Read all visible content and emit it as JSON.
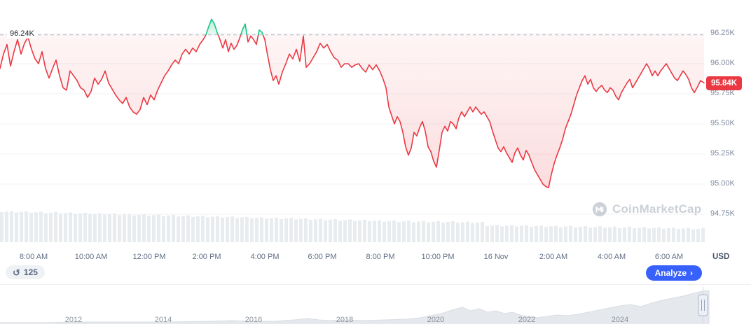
{
  "chart_data": {
    "type": "line",
    "title": "",
    "currency": "USD",
    "open_price": 96.24,
    "open_price_label": "96.24K",
    "current_price": 95.84,
    "current_price_label": "95.84K",
    "ylim": [
      94.625,
      96.4
    ],
    "grid": true,
    "legend": false,
    "y_ticks": [
      "96.25K",
      "96.00K",
      "95.75K",
      "95.50K",
      "95.25K",
      "95.00K",
      "94.75K"
    ],
    "y_tick_values": [
      96.25,
      96.0,
      95.75,
      95.5,
      95.25,
      95.0,
      94.75
    ],
    "x_ticks": [
      "8:00 AM",
      "10:00 AM",
      "12:00 PM",
      "2:00 PM",
      "4:00 PM",
      "6:00 PM",
      "8:00 PM",
      "10:00 PM",
      "16 Nov",
      "2:00 AM",
      "4:00 AM",
      "6:00 AM"
    ],
    "colors": {
      "up": "#16c784",
      "down": "#ea3943",
      "badge": "#ea3943",
      "grid": "#f0f2f5",
      "dash": "#b3bac4",
      "volume": "#e9ecef",
      "axis_text": "#808a9d",
      "nav_area": "#e5e8ec",
      "analyze_button": "#3861fb",
      "watermark": "#ccd1d8"
    },
    "price_points": [
      [
        0,
        95.96
      ],
      [
        5,
        96.08
      ],
      [
        10,
        96.16
      ],
      [
        15,
        95.98
      ],
      [
        20,
        96.1
      ],
      [
        25,
        96.2
      ],
      [
        30,
        96.08
      ],
      [
        35,
        96.17
      ],
      [
        40,
        96.22
      ],
      [
        45,
        96.12
      ],
      [
        50,
        96.04
      ],
      [
        55,
        96.0
      ],
      [
        60,
        96.1
      ],
      [
        65,
        95.96
      ],
      [
        70,
        95.88
      ],
      [
        75,
        95.96
      ],
      [
        80,
        96.03
      ],
      [
        85,
        95.9
      ],
      [
        90,
        95.8
      ],
      [
        95,
        95.78
      ],
      [
        100,
        95.94
      ],
      [
        105,
        95.9
      ],
      [
        110,
        95.86
      ],
      [
        115,
        95.8
      ],
      [
        120,
        95.78
      ],
      [
        125,
        95.72
      ],
      [
        130,
        95.77
      ],
      [
        135,
        95.88
      ],
      [
        140,
        95.83
      ],
      [
        145,
        95.87
      ],
      [
        150,
        95.94
      ],
      [
        155,
        95.84
      ],
      [
        160,
        95.79
      ],
      [
        165,
        95.74
      ],
      [
        170,
        95.7
      ],
      [
        175,
        95.67
      ],
      [
        180,
        95.72
      ],
      [
        185,
        95.64
      ],
      [
        190,
        95.6
      ],
      [
        195,
        95.58
      ],
      [
        200,
        95.62
      ],
      [
        205,
        95.72
      ],
      [
        210,
        95.66
      ],
      [
        215,
        95.74
      ],
      [
        220,
        95.7
      ],
      [
        225,
        95.78
      ],
      [
        230,
        95.84
      ],
      [
        235,
        95.9
      ],
      [
        240,
        95.94
      ],
      [
        245,
        95.99
      ],
      [
        250,
        96.03
      ],
      [
        255,
        96.0
      ],
      [
        260,
        96.08
      ],
      [
        265,
        96.12
      ],
      [
        270,
        96.08
      ],
      [
        275,
        96.13
      ],
      [
        280,
        96.1
      ],
      [
        285,
        96.16
      ],
      [
        290,
        96.2
      ],
      [
        294,
        96.24
      ],
      [
        298,
        96.31
      ],
      [
        302,
        96.37
      ],
      [
        306,
        96.33
      ],
      [
        310,
        96.26
      ],
      [
        314,
        96.2
      ],
      [
        318,
        96.13
      ],
      [
        322,
        96.2
      ],
      [
        326,
        96.1
      ],
      [
        330,
        96.17
      ],
      [
        334,
        96.12
      ],
      [
        338,
        96.15
      ],
      [
        342,
        96.21
      ],
      [
        346,
        96.28
      ],
      [
        350,
        96.33
      ],
      [
        354,
        96.18
      ],
      [
        358,
        96.23
      ],
      [
        362,
        96.2
      ],
      [
        366,
        96.16
      ],
      [
        370,
        96.28
      ],
      [
        374,
        96.26
      ],
      [
        378,
        96.2
      ],
      [
        382,
        96.07
      ],
      [
        386,
        95.95
      ],
      [
        390,
        95.86
      ],
      [
        394,
        95.9
      ],
      [
        398,
        95.83
      ],
      [
        403,
        95.93
      ],
      [
        408,
        96.0
      ],
      [
        413,
        96.08
      ],
      [
        418,
        96.04
      ],
      [
        423,
        96.12
      ],
      [
        428,
        96.02
      ],
      [
        433,
        96.23
      ],
      [
        437,
        95.97
      ],
      [
        442,
        96.0
      ],
      [
        447,
        96.05
      ],
      [
        452,
        96.1
      ],
      [
        457,
        96.17
      ],
      [
        462,
        96.13
      ],
      [
        467,
        96.16
      ],
      [
        472,
        96.1
      ],
      [
        477,
        96.05
      ],
      [
        482,
        96.03
      ],
      [
        487,
        95.97
      ],
      [
        492,
        96.0
      ],
      [
        497,
        96.0
      ],
      [
        502,
        95.97
      ],
      [
        507,
        95.99
      ],
      [
        512,
        96.0
      ],
      [
        517,
        95.96
      ],
      [
        522,
        95.93
      ],
      [
        527,
        95.99
      ],
      [
        532,
        95.95
      ],
      [
        537,
        95.99
      ],
      [
        542,
        95.94
      ],
      [
        547,
        95.87
      ],
      [
        551,
        95.8
      ],
      [
        555,
        95.64
      ],
      [
        559,
        95.57
      ],
      [
        563,
        95.5
      ],
      [
        567,
        95.56
      ],
      [
        571,
        95.52
      ],
      [
        575,
        95.43
      ],
      [
        579,
        95.31
      ],
      [
        583,
        95.24
      ],
      [
        587,
        95.3
      ],
      [
        591,
        95.43
      ],
      [
        595,
        95.4
      ],
      [
        599,
        95.47
      ],
      [
        603,
        95.52
      ],
      [
        607,
        95.44
      ],
      [
        611,
        95.31
      ],
      [
        615,
        95.27
      ],
      [
        619,
        95.19
      ],
      [
        623,
        95.14
      ],
      [
        627,
        95.28
      ],
      [
        631,
        95.43
      ],
      [
        635,
        95.48
      ],
      [
        639,
        95.44
      ],
      [
        643,
        95.52
      ],
      [
        647,
        95.5
      ],
      [
        651,
        95.46
      ],
      [
        655,
        95.55
      ],
      [
        659,
        95.6
      ],
      [
        663,
        95.56
      ],
      [
        667,
        95.6
      ],
      [
        671,
        95.64
      ],
      [
        675,
        95.6
      ],
      [
        679,
        95.64
      ],
      [
        683,
        95.61
      ],
      [
        687,
        95.58
      ],
      [
        691,
        95.6
      ],
      [
        695,
        95.56
      ],
      [
        699,
        95.52
      ],
      [
        703,
        95.44
      ],
      [
        707,
        95.37
      ],
      [
        711,
        95.3
      ],
      [
        715,
        95.27
      ],
      [
        719,
        95.31
      ],
      [
        723,
        95.26
      ],
      [
        727,
        95.22
      ],
      [
        731,
        95.18
      ],
      [
        735,
        95.26
      ],
      [
        739,
        95.3
      ],
      [
        743,
        95.24
      ],
      [
        747,
        95.2
      ],
      [
        751,
        95.28
      ],
      [
        755,
        95.24
      ],
      [
        759,
        95.18
      ],
      [
        763,
        95.12
      ],
      [
        767,
        95.08
      ],
      [
        771,
        95.04
      ],
      [
        775,
        95.0
      ],
      [
        779,
        94.98
      ],
      [
        783,
        94.97
      ],
      [
        787,
        95.08
      ],
      [
        791,
        95.17
      ],
      [
        795,
        95.24
      ],
      [
        799,
        95.3
      ],
      [
        803,
        95.37
      ],
      [
        807,
        95.46
      ],
      [
        811,
        95.52
      ],
      [
        815,
        95.58
      ],
      [
        819,
        95.66
      ],
      [
        823,
        95.74
      ],
      [
        827,
        95.8
      ],
      [
        831,
        95.86
      ],
      [
        835,
        95.9
      ],
      [
        839,
        95.83
      ],
      [
        843,
        95.87
      ],
      [
        847,
        95.8
      ],
      [
        851,
        95.77
      ],
      [
        855,
        95.8
      ],
      [
        859,
        95.82
      ],
      [
        863,
        95.78
      ],
      [
        867,
        95.76
      ],
      [
        871,
        95.8
      ],
      [
        875,
        95.78
      ],
      [
        879,
        95.73
      ],
      [
        883,
        95.7
      ],
      [
        887,
        95.76
      ],
      [
        891,
        95.8
      ],
      [
        895,
        95.84
      ],
      [
        899,
        95.87
      ],
      [
        903,
        95.8
      ],
      [
        907,
        95.84
      ],
      [
        911,
        95.88
      ],
      [
        915,
        95.92
      ],
      [
        919,
        95.96
      ],
      [
        923,
        96.0
      ],
      [
        927,
        95.96
      ],
      [
        931,
        95.9
      ],
      [
        935,
        95.94
      ],
      [
        939,
        95.9
      ],
      [
        943,
        95.94
      ],
      [
        947,
        95.97
      ],
      [
        951,
        96.0
      ],
      [
        955,
        95.96
      ],
      [
        959,
        95.92
      ],
      [
        963,
        95.88
      ],
      [
        967,
        95.86
      ],
      [
        971,
        95.9
      ],
      [
        975,
        95.94
      ],
      [
        979,
        95.91
      ],
      [
        983,
        95.87
      ],
      [
        987,
        95.8
      ],
      [
        991,
        95.76
      ],
      [
        995,
        95.8
      ],
      [
        1000,
        95.86
      ],
      [
        1005,
        95.84
      ]
    ],
    "volume_profile": [
      [
        0,
        44
      ],
      [
        80,
        42
      ],
      [
        160,
        40
      ],
      [
        240,
        38
      ],
      [
        320,
        36
      ],
      [
        400,
        34
      ],
      [
        480,
        32
      ],
      [
        560,
        30
      ],
      [
        640,
        29
      ],
      [
        688,
        28
      ],
      [
        692,
        24
      ],
      [
        760,
        23
      ],
      [
        830,
        22
      ],
      [
        900,
        21
      ],
      [
        960,
        20
      ],
      [
        1005,
        19
      ]
    ],
    "navigator": {
      "years": [
        "2012",
        "2014",
        "2016",
        "2018",
        "2020",
        "2022",
        "2024"
      ],
      "year_x": [
        105,
        233,
        362,
        492,
        622,
        752,
        885
      ],
      "area_points": [
        [
          0,
          1
        ],
        [
          60,
          1
        ],
        [
          120,
          2
        ],
        [
          180,
          2
        ],
        [
          240,
          2
        ],
        [
          300,
          3
        ],
        [
          330,
          4
        ],
        [
          360,
          3
        ],
        [
          390,
          3
        ],
        [
          420,
          5
        ],
        [
          440,
          7
        ],
        [
          455,
          5
        ],
        [
          470,
          4
        ],
        [
          492,
          5
        ],
        [
          520,
          4
        ],
        [
          550,
          5
        ],
        [
          580,
          6
        ],
        [
          600,
          8
        ],
        [
          615,
          11
        ],
        [
          630,
          14
        ],
        [
          645,
          19
        ],
        [
          660,
          23
        ],
        [
          672,
          18
        ],
        [
          684,
          21
        ],
        [
          696,
          16
        ],
        [
          708,
          18
        ],
        [
          720,
          14
        ],
        [
          732,
          16
        ],
        [
          745,
          11
        ],
        [
          755,
          10
        ],
        [
          768,
          8
        ],
        [
          780,
          10
        ],
        [
          795,
          12
        ],
        [
          810,
          11
        ],
        [
          825,
          13
        ],
        [
          840,
          16
        ],
        [
          855,
          19
        ],
        [
          870,
          22
        ],
        [
          885,
          25
        ],
        [
          900,
          27
        ],
        [
          915,
          24
        ],
        [
          930,
          29
        ],
        [
          945,
          33
        ],
        [
          960,
          36
        ],
        [
          975,
          39
        ],
        [
          990,
          43
        ],
        [
          1002,
          46
        ],
        [
          1012,
          47
        ]
      ]
    }
  },
  "toolbar": {
    "history_count": "125",
    "analyze_label": "Analyze",
    "analyze_chevron": "›"
  },
  "watermark": {
    "text": "CoinMarketCap"
  }
}
